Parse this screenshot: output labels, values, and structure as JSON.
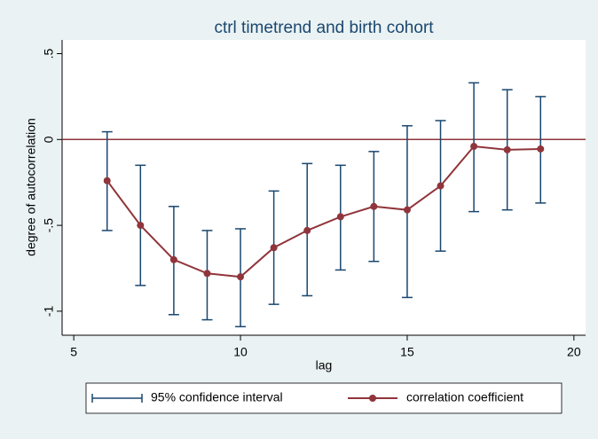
{
  "chart_data": {
    "type": "errorbar-line",
    "title": "ctrl timetrend and birth cohort",
    "x_label": "lag",
    "y_label": "degree of autocorrelation",
    "x": [
      6,
      7,
      8,
      9,
      10,
      11,
      12,
      13,
      14,
      15,
      16,
      17,
      18,
      19
    ],
    "series": [
      {
        "name": "95% confidence interval",
        "color": "#1a476f",
        "low": [
          -0.53,
          -0.85,
          -1.02,
          -1.05,
          -1.09,
          -0.96,
          -0.91,
          -0.76,
          -0.71,
          -0.92,
          -0.65,
          -0.42,
          -0.41,
          -0.37
        ],
        "high": [
          0.045,
          -0.15,
          -0.39,
          -0.53,
          -0.52,
          -0.3,
          -0.14,
          -0.15,
          -0.07,
          0.08,
          0.11,
          0.33,
          0.29,
          0.25
        ]
      },
      {
        "name": "correlation coefficient",
        "color": "#90353b",
        "values": [
          -0.24,
          -0.5,
          -0.7,
          -0.78,
          -0.8,
          -0.63,
          -0.53,
          -0.45,
          -0.39,
          -0.41,
          -0.27,
          -0.04,
          -0.06,
          -0.055
        ]
      }
    ],
    "reference_line": 0,
    "reference_color": "#90353b",
    "xlim": [
      4.65,
      20.35
    ],
    "xticks": [
      5,
      10,
      15,
      20
    ],
    "ylim": [
      -1.14,
      0.58
    ],
    "yticks": [
      {
        "value": 0.5,
        "label": ".5"
      },
      0,
      {
        "value": -0.5,
        "label": "-.5"
      },
      -1
    ],
    "legend": "bottom"
  }
}
